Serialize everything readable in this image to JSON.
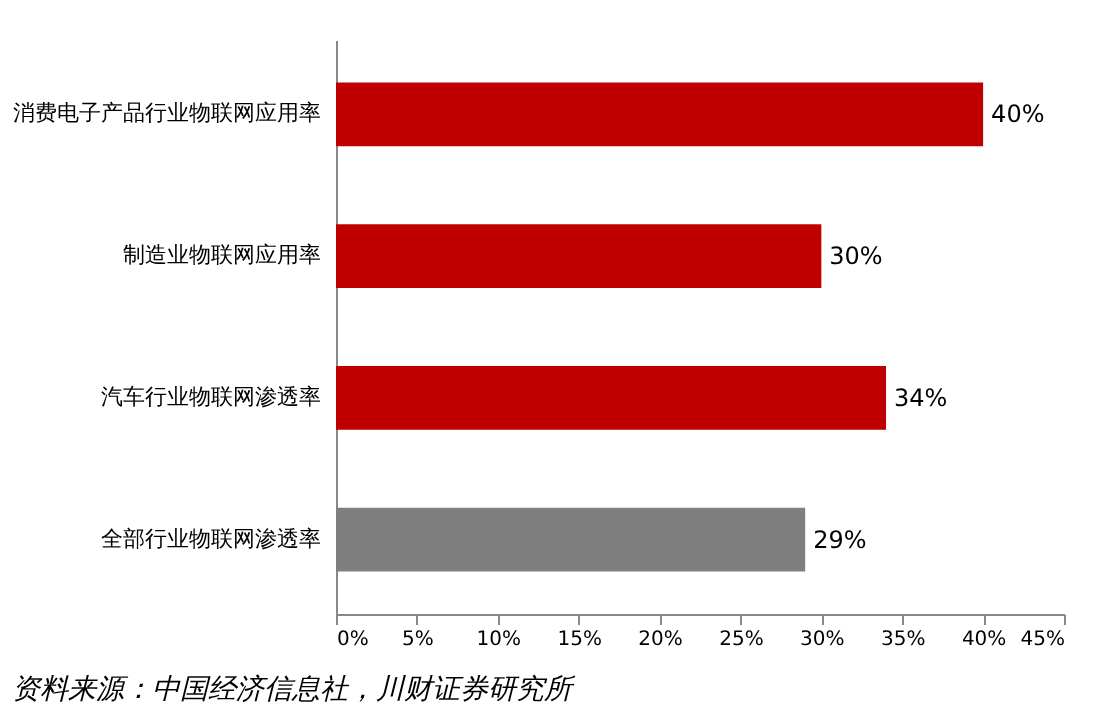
{
  "chart_data": {
    "type": "bar",
    "orientation": "horizontal",
    "categories": [
      "消费电子产品行业物联网应用率",
      "制造业物联网应用率",
      "汽车行业物联网渗透率",
      "全部行业物联网渗透率"
    ],
    "values": [
      40,
      30,
      34,
      29
    ],
    "colors": [
      "#c00000",
      "#c00000",
      "#c00000",
      "#7f7f7f"
    ],
    "value_labels": [
      "40%",
      "30%",
      "34%",
      "29%"
    ],
    "xlim": [
      0,
      45
    ],
    "xticks": [
      {
        "value": 0,
        "label": "0%"
      },
      {
        "value": 5,
        "label": "5%"
      },
      {
        "value": 10,
        "label": "10%"
      },
      {
        "value": 15,
        "label": "15%"
      },
      {
        "value": 20,
        "label": "20%"
      },
      {
        "value": 25,
        "label": "25%"
      },
      {
        "value": 30,
        "label": "30%"
      },
      {
        "value": 35,
        "label": "35%"
      },
      {
        "value": 40,
        "label": "40%"
      },
      {
        "value": 45,
        "label": "45%"
      }
    ],
    "annotations": [
      "资料来源：中国经济信息社，川财证券研究所"
    ],
    "grid": false
  }
}
